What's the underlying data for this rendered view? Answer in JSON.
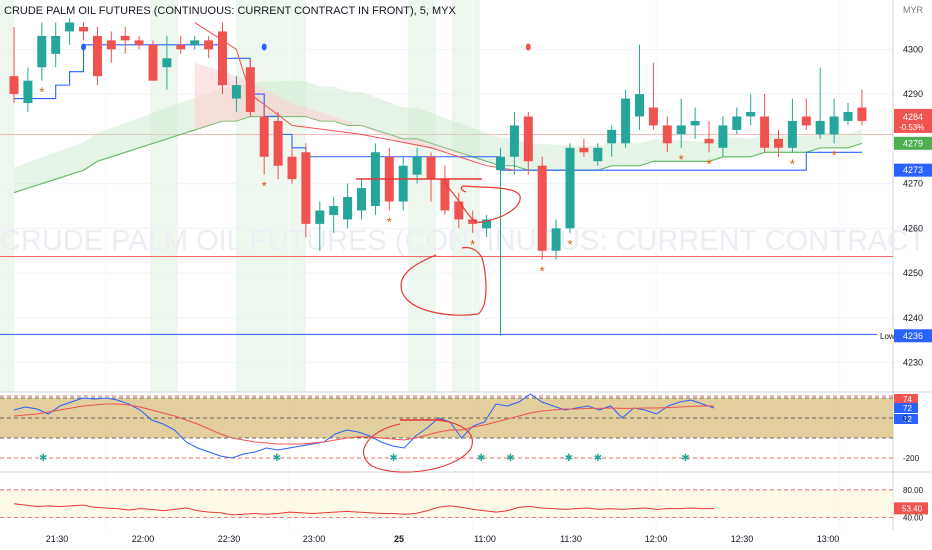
{
  "header": {
    "title": "CRUDE PALM OIL FUTURES (CONTINUOUS: CURRENT CONTRACT IN FRONT), 5, MYX",
    "currency": "MYR"
  },
  "watermark": "CRUDE PALM OIL FUTURES (CONTINUOUS: CURRENT CONTRACT IN FRONT)",
  "colors": {
    "up": "#26a69a",
    "down": "#ef5350",
    "blue": "#2962ff",
    "green_ma": "#4caf50",
    "session": "#e8f5e9",
    "band": "#d4b36a",
    "star": "#e65100",
    "drawing": "#e53935"
  },
  "chart_data": [
    {
      "type": "candlestick",
      "name": "price",
      "ylim": [
        4225,
        4307
      ],
      "yticks": [
        4230,
        4240,
        4250,
        4260,
        4270,
        4290,
        4300
      ],
      "candles": [
        {
          "o": 4294,
          "h": 4305,
          "l": 4288,
          "c": 4290
        },
        {
          "o": 4288,
          "h": 4296,
          "l": 4286,
          "c": 4293
        },
        {
          "o": 4296,
          "h": 4306,
          "l": 4293,
          "c": 4303
        },
        {
          "o": 4299,
          "h": 4306,
          "l": 4296,
          "c": 4303
        },
        {
          "o": 4304,
          "h": 4307,
          "l": 4301,
          "c": 4306
        },
        {
          "o": 4305,
          "h": 4306,
          "l": 4302,
          "c": 4304
        },
        {
          "o": 4303,
          "h": 4305,
          "l": 4292,
          "c": 4294
        },
        {
          "o": 4302,
          "h": 4304,
          "l": 4297,
          "c": 4300
        },
        {
          "o": 4303,
          "h": 4305,
          "l": 4299,
          "c": 4302
        },
        {
          "o": 4302,
          "h": 4303,
          "l": 4300,
          "c": 4301
        },
        {
          "o": 4301,
          "h": 4302,
          "l": 4293,
          "c": 4293
        },
        {
          "o": 4296,
          "h": 4303,
          "l": 4291,
          "c": 4298
        },
        {
          "o": 4301,
          "h": 4303,
          "l": 4299,
          "c": 4300
        },
        {
          "o": 4301,
          "h": 4303,
          "l": 4300,
          "c": 4302
        },
        {
          "o": 4302,
          "h": 4303,
          "l": 4298,
          "c": 4300
        },
        {
          "o": 4304,
          "h": 4306,
          "l": 4290,
          "c": 4292
        },
        {
          "o": 4289,
          "h": 4294,
          "l": 4286,
          "c": 4292
        },
        {
          "o": 4296,
          "h": 4298,
          "l": 4285,
          "c": 4286
        },
        {
          "o": 4285,
          "h": 4287,
          "l": 4272,
          "c": 4276
        },
        {
          "o": 4284,
          "h": 4286,
          "l": 4271,
          "c": 4274
        },
        {
          "o": 4276,
          "h": 4278,
          "l": 4270,
          "c": 4271
        },
        {
          "o": 4277,
          "h": 4279,
          "l": 4258,
          "c": 4261
        },
        {
          "o": 4261,
          "h": 4266,
          "l": 4255,
          "c": 4264
        },
        {
          "o": 4263,
          "h": 4267,
          "l": 4259,
          "c": 4265
        },
        {
          "o": 4262,
          "h": 4270,
          "l": 4260,
          "c": 4267
        },
        {
          "o": 4264,
          "h": 4271,
          "l": 4262,
          "c": 4269
        },
        {
          "o": 4265,
          "h": 4279,
          "l": 4263,
          "c": 4277
        },
        {
          "o": 4276,
          "h": 4278,
          "l": 4264,
          "c": 4266
        },
        {
          "o": 4266,
          "h": 4276,
          "l": 4264,
          "c": 4274
        },
        {
          "o": 4272,
          "h": 4278,
          "l": 4270,
          "c": 4276
        },
        {
          "o": 4276,
          "h": 4277,
          "l": 4266,
          "c": 4271
        },
        {
          "o": 4271,
          "h": 4274,
          "l": 4263,
          "c": 4264
        },
        {
          "o": 4266,
          "h": 4268,
          "l": 4260,
          "c": 4262
        },
        {
          "o": 4262,
          "h": 4264,
          "l": 4259,
          "c": 4261
        },
        {
          "o": 4260,
          "h": 4263,
          "l": 4258,
          "c": 4262
        },
        {
          "o": 4273,
          "h": 4278,
          "l": 4236,
          "c": 4276
        },
        {
          "o": 4276,
          "h": 4286,
          "l": 4272,
          "c": 4283
        },
        {
          "o": 4285,
          "h": 4286,
          "l": 4272,
          "c": 4275
        },
        {
          "o": 4274,
          "h": 4276,
          "l": 4253,
          "c": 4255
        },
        {
          "o": 4255,
          "h": 4262,
          "l": 4253,
          "c": 4260
        },
        {
          "o": 4260,
          "h": 4279,
          "l": 4259,
          "c": 4278
        },
        {
          "o": 4278,
          "h": 4280,
          "l": 4276,
          "c": 4277
        },
        {
          "o": 4275,
          "h": 4279,
          "l": 4274,
          "c": 4278
        },
        {
          "o": 4279,
          "h": 4283,
          "l": 4276,
          "c": 4282
        },
        {
          "o": 4279,
          "h": 4291,
          "l": 4278,
          "c": 4289
        },
        {
          "o": 4285,
          "h": 4301,
          "l": 4282,
          "c": 4290
        },
        {
          "o": 4287,
          "h": 4297,
          "l": 4282,
          "c": 4283
        },
        {
          "o": 4283,
          "h": 4285,
          "l": 4277,
          "c": 4279
        },
        {
          "o": 4281,
          "h": 4289,
          "l": 4278,
          "c": 4283
        },
        {
          "o": 4283,
          "h": 4287,
          "l": 4280,
          "c": 4284
        },
        {
          "o": 4280,
          "h": 4284,
          "l": 4277,
          "c": 4279
        },
        {
          "o": 4278,
          "h": 4285,
          "l": 4276,
          "c": 4283
        },
        {
          "o": 4282,
          "h": 4287,
          "l": 4281,
          "c": 4285
        },
        {
          "o": 4285,
          "h": 4290,
          "l": 4283,
          "c": 4286
        },
        {
          "o": 4285,
          "h": 4290,
          "l": 4277,
          "c": 4278
        },
        {
          "o": 4280,
          "h": 4282,
          "l": 4276,
          "c": 4278
        },
        {
          "o": 4278,
          "h": 4289,
          "l": 4277,
          "c": 4284
        },
        {
          "o": 4285,
          "h": 4289,
          "l": 4282,
          "c": 4283
        },
        {
          "o": 4281,
          "h": 4296,
          "l": 4280,
          "c": 4284
        },
        {
          "o": 4281,
          "h": 4289,
          "l": 4279,
          "c": 4285
        },
        {
          "o": 4284,
          "h": 4288,
          "l": 4283,
          "c": 4286
        },
        {
          "o": 4287,
          "h": 4291,
          "l": 4283,
          "c": 4284
        }
      ],
      "price_labels": [
        {
          "text": "4284",
          "sub": "-0.53%",
          "value": 4284,
          "color": "#ef5350"
        },
        {
          "text": "4279",
          "value": 4279,
          "color": "#4caf50"
        },
        {
          "text": "4273",
          "value": 4273,
          "color": "#2962ff"
        },
        {
          "text": "4236",
          "value": 4236,
          "color": "#2962ff",
          "tag": "Low"
        }
      ],
      "hlines": [
        4253.7,
        4281,
        4236.3
      ],
      "blue_step": [
        4289,
        4289,
        4289,
        4292,
        4295,
        4301,
        4301,
        4301,
        4301,
        4301,
        4301,
        4301,
        4301,
        4301,
        4301,
        4298,
        4298,
        4290,
        4285,
        4281,
        4278,
        4276,
        4276,
        4276,
        4276,
        4276,
        4276,
        4276,
        4276,
        4276,
        4276,
        4276,
        4276,
        4276,
        4276,
        4273,
        4273,
        4273,
        4273,
        4273,
        4273,
        4273,
        4273,
        4273,
        4273,
        4273,
        4273,
        4273,
        4273,
        4273,
        4273,
        4273,
        4273,
        4273,
        4273,
        4273,
        4273,
        4277,
        4277,
        4277,
        4277,
        4277
      ],
      "green_ma": [
        4268,
        4269,
        4270,
        4271,
        4272,
        4273,
        4275,
        4276,
        4277,
        4278,
        4279,
        4280,
        4281,
        4282,
        4283,
        4284,
        4284,
        4285,
        4285,
        4285,
        4285,
        4285,
        4284,
        4284,
        4283,
        4283,
        4282,
        4281,
        4280,
        4280,
        4279,
        4278,
        4277,
        4276,
        4275,
        4274,
        4274,
        4273,
        4273,
        4273,
        4273,
        4273,
        4273,
        4274,
        4274,
        4274,
        4275,
        4275,
        4275,
        4275,
        4275,
        4276,
        4276,
        4276,
        4277,
        4277,
        4277,
        4277,
        4278,
        4278,
        4278,
        4279
      ],
      "star_markers": [
        2,
        18,
        27,
        33,
        38,
        40,
        48,
        50,
        56,
        59
      ],
      "dot_markers": [
        {
          "i": 5,
          "color": "#2962ff"
        },
        {
          "i": 18,
          "color": "#2962ff"
        },
        {
          "i": 37,
          "color": "#ef5350"
        }
      ]
    },
    {
      "type": "line",
      "name": "oscillator",
      "ylim": [
        -260,
        110
      ],
      "yticks_shown": [
        "74",
        "72",
        "72",
        "0",
        "-200"
      ],
      "band": [
        -100,
        100
      ],
      "series": [
        {
          "color": "#2962ff",
          "values": [
            40,
            55,
            45,
            20,
            60,
            80,
            100,
            95,
            100,
            90,
            70,
            40,
            -10,
            -30,
            -60,
            -120,
            -150,
            -170,
            -190,
            -200,
            -180,
            -170,
            -150,
            -160,
            -150,
            -140,
            -130,
            -120,
            -80,
            -60,
            -70,
            -90,
            -120,
            -140,
            -150,
            -90,
            -50,
            0,
            -20,
            -100,
            -40,
            -20,
            70,
            60,
            80,
            120,
            80,
            60,
            40,
            50,
            60,
            40,
            60,
            0,
            50,
            40,
            20,
            60,
            80,
            90,
            70,
            50
          ]
        },
        {
          "color": "#ef5350",
          "values": [
            10,
            15,
            20,
            30,
            40,
            50,
            60,
            65,
            70,
            70,
            65,
            55,
            40,
            25,
            10,
            -10,
            -30,
            -55,
            -80,
            -100,
            -110,
            -120,
            -125,
            -130,
            -130,
            -130,
            -125,
            -120,
            -110,
            -100,
            -95,
            -95,
            -100,
            -105,
            -110,
            -100,
            -85,
            -70,
            -60,
            -60,
            -45,
            -35,
            -20,
            -5,
            10,
            25,
            35,
            40,
            45,
            45,
            48,
            48,
            50,
            48,
            48,
            50,
            50,
            52,
            55,
            58,
            60,
            60
          ]
        }
      ],
      "markers": [
        1,
        9,
        13,
        16,
        17,
        19,
        20,
        23
      ]
    },
    {
      "type": "line",
      "name": "rsi",
      "ylim": [
        28,
        100
      ],
      "yticks": [
        40,
        80
      ],
      "last": "53.40",
      "values": [
        60,
        58,
        56,
        57,
        56,
        57,
        58,
        55,
        54,
        53,
        51,
        53,
        52,
        50,
        52,
        54,
        50,
        48,
        47,
        44,
        45,
        46,
        45,
        46,
        48,
        47,
        46,
        47,
        48,
        49,
        48,
        47,
        46,
        46,
        45,
        46,
        50,
        55,
        57,
        55,
        52,
        50,
        48,
        50,
        55,
        56,
        54,
        53,
        52,
        53,
        54,
        52,
        53,
        52,
        53,
        54,
        52,
        53,
        53,
        54,
        53,
        53.4
      ]
    }
  ],
  "xaxis": {
    "ticks": [
      {
        "label": "21:30",
        "i": 3
      },
      {
        "label": "22:00",
        "i": 9
      },
      {
        "label": "22:30",
        "i": 15
      },
      {
        "label": "23:00",
        "i": 21
      },
      {
        "label": "25",
        "i": 27,
        "bold": true
      },
      {
        "label": "11:00",
        "i": 33
      },
      {
        "label": "11:30",
        "i": 39
      },
      {
        "label": "12:00",
        "i": 45
      },
      {
        "label": "12:30",
        "i": 51
      },
      {
        "label": "13:00",
        "i": 57
      }
    ]
  }
}
